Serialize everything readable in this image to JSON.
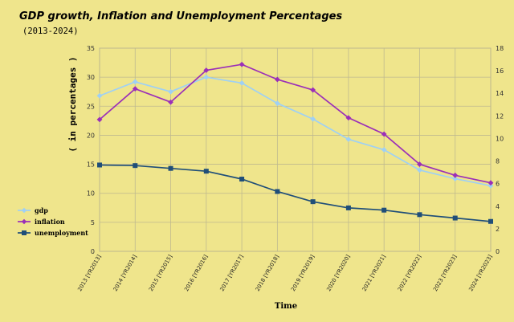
{
  "chart_data": {
    "type": "line",
    "title": "GDP growth, Inflation and Unemployment Percentages",
    "subtitle": "(2013-2024)",
    "xlabel": "Time",
    "ylabel": "( in percentages )",
    "categories": [
      "2013 [YR2013]",
      "2014 [YR2014]",
      "2015 [YR2015]",
      "2016 [YR2016]",
      "2017 [YR2017]",
      "2018 [YR2018]",
      "2019 [YR2019]",
      "2020 [YR2020]",
      "2021 [YR2021]",
      "2022 [YR2022]",
      "2023 [YR2023]",
      "2024 [YR2023]"
    ],
    "ylim": [
      0,
      35
    ],
    "yticks": [
      0,
      5,
      10,
      15,
      20,
      25,
      30,
      35
    ],
    "y2lim": [
      0,
      18
    ],
    "y2ticks": [
      0,
      2,
      4,
      6,
      8,
      10,
      12,
      14,
      16,
      18
    ],
    "grid": true,
    "legend_position": "left",
    "series": [
      {
        "name": "gdp",
        "color": "#9fd0f4",
        "marker": "diamond",
        "axis": "left",
        "values": [
          26.8,
          29.2,
          27.5,
          30.0,
          29.0,
          25.5,
          22.8,
          19.3,
          17.5,
          14.0,
          12.5,
          11.3
        ]
      },
      {
        "name": "inflation",
        "color": "#9b2fb8",
        "marker": "diamond",
        "axis": "left",
        "values": [
          22.7,
          28.0,
          25.7,
          31.2,
          32.2,
          29.6,
          27.8,
          23.0,
          20.2,
          15.0,
          13.1,
          11.8
        ]
      },
      {
        "name": "unemployment",
        "color": "#1f4e79",
        "marker": "square",
        "axis": "right",
        "values": [
          7.65,
          7.6,
          7.35,
          7.1,
          6.4,
          5.3,
          4.4,
          3.85,
          3.65,
          3.25,
          2.95,
          2.65
        ]
      }
    ]
  }
}
